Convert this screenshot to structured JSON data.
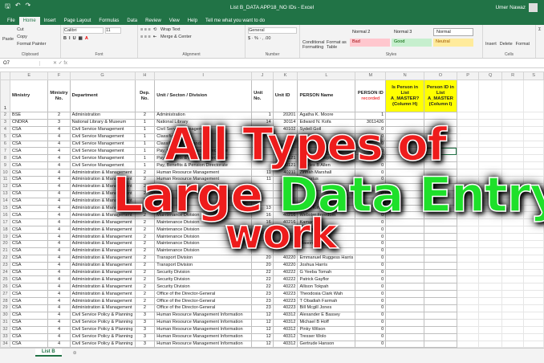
{
  "title": "List B_DATA APP18_NO IDs  -  Excel",
  "user": "Umer Nawaz",
  "menu": [
    "File",
    "Home",
    "Insert",
    "Page Layout",
    "Formulas",
    "Data",
    "Review",
    "View",
    "Help",
    "Tell me what you want to do"
  ],
  "ribbon": {
    "paste": "Paste",
    "cut": "Cut",
    "copy": "Copy",
    "format_painter": "Format Painter",
    "clipboard": "Clipboard",
    "font_name": "Calibri",
    "font_size": "11",
    "font": "Font",
    "wrap": "Wrap Text",
    "merge": "Merge & Center",
    "alignment": "Alignment",
    "number_format": "General",
    "number": "Number",
    "cond": "Conditional Formatting",
    "fmt_table": "Format as Table",
    "styles": "Styles",
    "normal2": "Normal 2",
    "normal3": "Normal 3",
    "normal": "Normal",
    "bad": "Bad",
    "good": "Good",
    "neutral": "Neutral",
    "insert": "Insert",
    "delete": "Delete",
    "format": "Format",
    "cells": "Cells"
  },
  "name_box": "O7",
  "columns": [
    "E",
    "F",
    "G",
    "H",
    "I",
    "J",
    "K",
    "L",
    "M",
    "N",
    "O",
    "P",
    "Q",
    "R",
    "S"
  ],
  "headers": [
    "Ministry",
    "Ministry No.",
    "Department",
    "Dep. No.",
    "Unit / Secton / Division",
    "Unit No.",
    "Unit ID",
    "PERSON  Name",
    "PERSON  ID",
    "Is Person in List A_MASTER? (Column H)",
    "Person ID in List A_MASTER (Column I)"
  ],
  "header_note": "recorded",
  "rows": [
    [
      "BSE",
      "2",
      "Administration",
      "2",
      "Administration",
      "1",
      "20201",
      "Agatha K. Moore",
      "1"
    ],
    [
      "CNDRA",
      "3",
      "National Library & Museum",
      "1",
      "National Library",
      "14",
      "30114",
      "Edward N. Kofa",
      "3011426"
    ],
    [
      "CSA",
      "4",
      "Civil Service Management",
      "1",
      "Civil Service Management",
      "2",
      "40102",
      "Sydell Goll",
      "0"
    ],
    [
      "CSA",
      "4",
      "Civil Service Management",
      "1",
      "Classification",
      "",
      "",
      "",
      "0"
    ],
    [
      "CSA",
      "4",
      "Civil Service Management",
      "1",
      "Classification & Standards",
      "",
      "",
      "",
      "0"
    ],
    [
      "CSA",
      "4",
      "Civil Service Management",
      "1",
      "Pay, Benefits & Pension Directorate",
      "",
      "",
      "",
      "0"
    ],
    [
      "CSA",
      "4",
      "Civil Service Management",
      "1",
      "Pay, Benefits & Pension Directorate",
      "",
      "40121",
      "Oliver Christopher Brown",
      "0"
    ],
    [
      "CSA",
      "4",
      "Civil Service Management",
      "1",
      "Pay, Benefits & Pension Directorate",
      "",
      "40121",
      "Charles B Allen",
      "0"
    ],
    [
      "CSA",
      "4",
      "Administration & Management",
      "2",
      "Human Resource Management",
      "11",
      "40211",
      "Zinnah Marshall",
      "0"
    ],
    [
      "CSA",
      "4",
      "Administration & Management",
      "2",
      "Human Resource Management",
      "11",
      "40211",
      "Augustus",
      "0"
    ],
    [
      "CSA",
      "4",
      "Administration & Management",
      "2",
      "",
      "",
      "",
      "",
      "0"
    ],
    [
      "CSA",
      "4",
      "Administration & Management",
      "2",
      "",
      "",
      "",
      "",
      "0"
    ],
    [
      "CSA",
      "4",
      "Administration & Management",
      "2",
      "",
      "",
      "",
      "",
      "0"
    ],
    [
      "CSA",
      "4",
      "Administration & Management",
      "2",
      "Finance",
      "13",
      "40213",
      "Tessa Kimba",
      "0"
    ],
    [
      "CSA",
      "4",
      "Administration & Management",
      "2",
      "Maintenance Division",
      "16",
      "40216",
      "Webster Freedom",
      "0"
    ],
    [
      "CSA",
      "4",
      "Administration & Management",
      "2",
      "Maintenance Division",
      "16",
      "40216",
      "Kamara",
      "0"
    ],
    [
      "CSA",
      "4",
      "Administration & Management",
      "2",
      "Maintenance Division",
      "",
      "",
      "Anderson",
      "0"
    ],
    [
      "CSA",
      "4",
      "Administration & Management",
      "2",
      "Maintenance Division",
      "",
      "",
      "",
      "0"
    ],
    [
      "CSA",
      "4",
      "Administration & Management",
      "2",
      "Maintenance Division",
      "",
      "",
      "Mason",
      "0"
    ],
    [
      "CSA",
      "4",
      "Administration & Management",
      "2",
      "Maintenance Division",
      "",
      "",
      "",
      "0"
    ],
    [
      "CSA",
      "4",
      "Administration & Management",
      "2",
      "Transport Division",
      "20",
      "40220",
      "Emmanuel Ruggess Harris",
      "0"
    ],
    [
      "CSA",
      "4",
      "Administration & Management",
      "2",
      "Transport Division",
      "20",
      "40220",
      "Joshua Harris",
      "0"
    ],
    [
      "CSA",
      "4",
      "Administration & Management",
      "2",
      "Security Division",
      "22",
      "40222",
      "G Yeeba Tomah",
      "0"
    ],
    [
      "CSA",
      "4",
      "Administration & Management",
      "2",
      "Security Division",
      "22",
      "40222",
      "Patrick Gayflor",
      "0"
    ],
    [
      "CSA",
      "4",
      "Administration & Management",
      "2",
      "Security Division",
      "22",
      "40222",
      "Allison Tokpah",
      "0"
    ],
    [
      "CSA",
      "4",
      "Administration & Management",
      "2",
      "Office of the Director-General",
      "23",
      "40223",
      "Theodosia Clark Wah",
      "0"
    ],
    [
      "CSA",
      "4",
      "Administration & Management",
      "2",
      "Office of the Director-General",
      "23",
      "40223",
      "T Obadiah Farmah",
      "0"
    ],
    [
      "CSA",
      "4",
      "Administration & Management",
      "2",
      "Office of the Director-General",
      "23",
      "40223",
      "Bill Mcgill Jones",
      "0"
    ],
    [
      "CSA",
      "4",
      "Civil Service Policy & Planning",
      "3",
      "Human Resource Management Information",
      "12",
      "40312",
      "Alexander E Bassey",
      "0"
    ],
    [
      "CSA",
      "4",
      "Civil Service Policy & Planning",
      "3",
      "Human Resource Management Information",
      "12",
      "40312",
      "Michael B Hoff",
      "0"
    ],
    [
      "CSA",
      "4",
      "Civil Service Policy & Planning",
      "3",
      "Human Resource Management Information",
      "12",
      "40312",
      "Pinky Wilson",
      "0"
    ],
    [
      "CSA",
      "4",
      "Civil Service Policy & Planning",
      "3",
      "Human Resource Management Information",
      "12",
      "40312",
      "Tresser Wolo",
      "0"
    ],
    [
      "CSA",
      "4",
      "Civil Service Policy & Planning",
      "3",
      "Human Resource Management Information",
      "12",
      "40312",
      "Gertrude Hanson",
      "0"
    ]
  ],
  "sheet_tab": "List B",
  "overlay": {
    "line1": "All Types of",
    "line2a": "Large",
    "line2b": "Data Entry",
    "line3": "work"
  },
  "colors": {
    "excel_green": "#217346",
    "overlay_red": "#ee1c1c",
    "overlay_green": "#1ee02a",
    "header_yellow": "#ffff00"
  }
}
